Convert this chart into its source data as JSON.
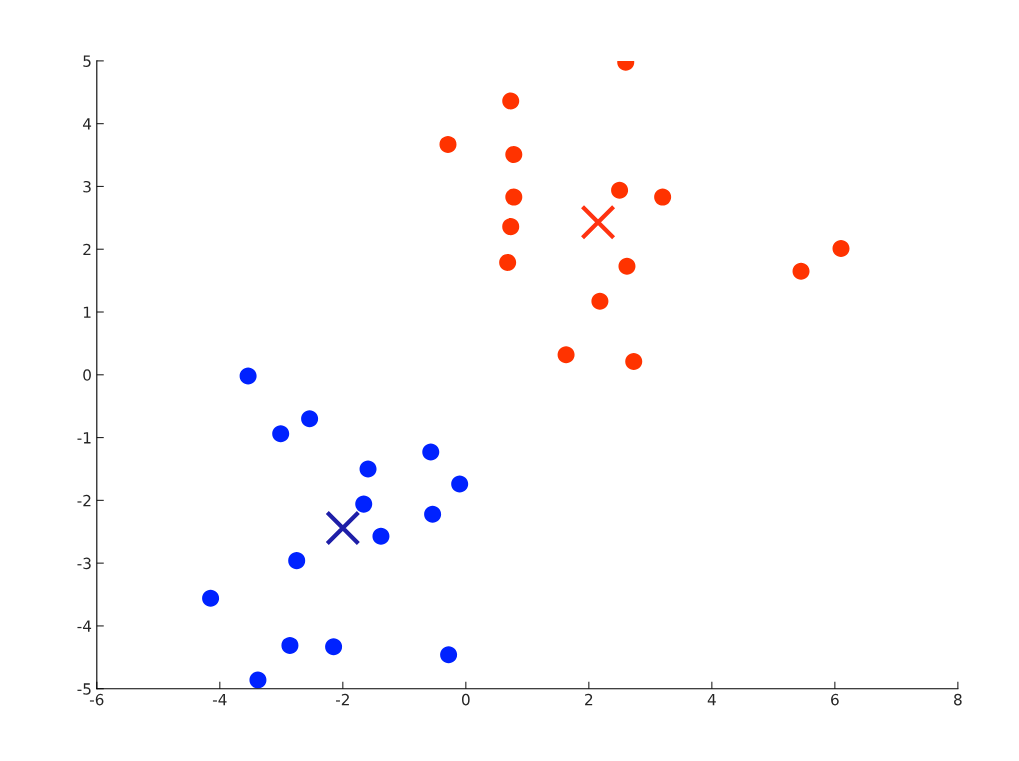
{
  "chart_data": {
    "type": "scatter",
    "xlim": [
      -6,
      8
    ],
    "ylim": [
      -5,
      5
    ],
    "xticks": [
      -6,
      -4,
      -2,
      0,
      2,
      4,
      6,
      8
    ],
    "yticks": [
      -5,
      -4,
      -3,
      -2,
      -1,
      0,
      1,
      2,
      3,
      4,
      5
    ],
    "grid": false,
    "series": [
      {
        "color": "#ff3300",
        "marker": "circle",
        "x": [
          2.6,
          0.73,
          -0.29,
          0.78,
          0.78,
          0.73,
          0.68,
          2.5,
          3.2,
          2.62,
          2.18,
          1.63,
          2.73,
          5.45,
          6.1
        ],
        "values": [
          4.98,
          4.36,
          3.67,
          3.51,
          2.83,
          2.36,
          1.79,
          2.94,
          2.83,
          1.73,
          1.17,
          0.32,
          0.21,
          1.65,
          2.01
        ]
      },
      {
        "color": "#0022ff",
        "marker": "circle",
        "x": [
          -3.54,
          -3.01,
          -2.54,
          -1.59,
          -0.57,
          -0.1,
          -1.66,
          -0.54,
          -1.38,
          -2.75,
          -4.15,
          -2.86,
          -2.15,
          -0.28,
          -3.38
        ],
        "values": [
          -0.02,
          -0.94,
          -0.7,
          -1.5,
          -1.23,
          -1.74,
          -2.06,
          -2.22,
          -2.57,
          -2.96,
          -3.56,
          -4.31,
          -4.33,
          -4.46,
          -4.86
        ]
      },
      {
        "color": "#ff3311",
        "marker": "cross",
        "x": [
          2.15
        ],
        "values": [
          2.43
        ]
      },
      {
        "color": "#1f1fa8",
        "marker": "cross",
        "x": [
          -2.0
        ],
        "values": [
          -2.44
        ]
      }
    ]
  }
}
